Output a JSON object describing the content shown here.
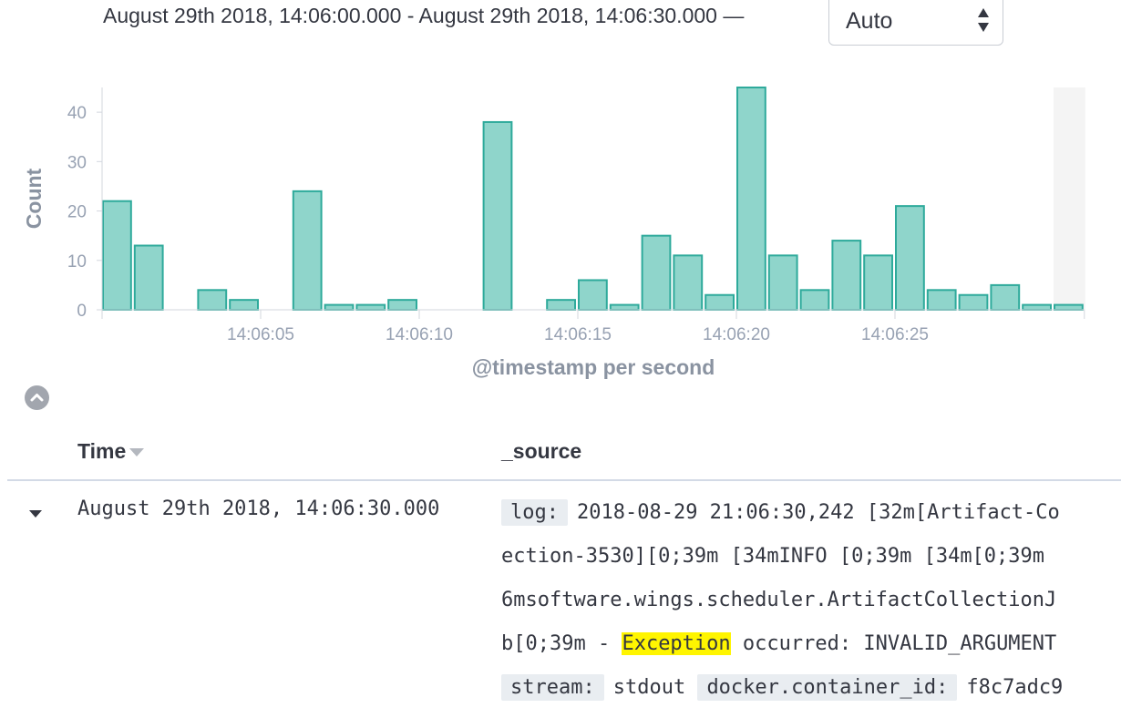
{
  "header": {
    "time_range": "August 29th 2018, 14:06:00.000 - August 29th 2018, 14:06:30.000 —",
    "interval_select": {
      "value": "Auto",
      "options": [
        "Auto"
      ]
    }
  },
  "colors": {
    "bar_fill": "#8fd5cb",
    "bar_stroke": "#2eaa9b",
    "axis_text": "#98a2b3",
    "partial_bucket": "#f4f4f4",
    "highlight": "#fff500"
  },
  "chart_data": {
    "type": "bar",
    "title": "",
    "xlabel": "@timestamp per second",
    "ylabel": "Count",
    "ylim": [
      0,
      45
    ],
    "yticks": [
      0,
      10,
      20,
      30,
      40
    ],
    "xticks": [
      "14:06:05",
      "14:06:10",
      "14:06:15",
      "14:06:20",
      "14:06:25"
    ],
    "categories": [
      "14:06:00",
      "14:06:01",
      "14:06:02",
      "14:06:03",
      "14:06:04",
      "14:06:05",
      "14:06:06",
      "14:06:07",
      "14:06:08",
      "14:06:09",
      "14:06:10",
      "14:06:11",
      "14:06:12",
      "14:06:13",
      "14:06:14",
      "14:06:15",
      "14:06:16",
      "14:06:17",
      "14:06:18",
      "14:06:19",
      "14:06:20",
      "14:06:21",
      "14:06:22",
      "14:06:23",
      "14:06:24",
      "14:06:25",
      "14:06:26",
      "14:06:27",
      "14:06:28",
      "14:06:29",
      "14:06:30"
    ],
    "values": [
      22,
      13,
      0,
      4,
      2,
      0,
      24,
      1,
      1,
      2,
      0,
      0,
      38,
      0,
      2,
      6,
      1,
      15,
      11,
      3,
      45,
      11,
      4,
      14,
      11,
      21,
      4,
      3,
      5,
      1,
      1
    ],
    "partial_bucket_from": "14:06:30",
    "grid": false,
    "legend": "none"
  },
  "table": {
    "columns": [
      {
        "label": "Time",
        "sort": "desc",
        "sort_icon": "caret-down-icon"
      },
      {
        "label": "_source"
      }
    ],
    "rows": [
      {
        "time": "August 29th 2018, 14:06:30.000",
        "expand_icon": "caret-down-icon",
        "source_lines": [
          [
            {
              "key": "log:"
            },
            {
              "text": "2018-08-29 21:06:30,242 [32m[Artifact-Co"
            }
          ],
          [
            {
              "text": "ection-3530][0;39m [34mINFO [0;39m [34m[0;39m"
            }
          ],
          [
            {
              "text": "6msoftware.wings.scheduler.ArtifactCollectionJ"
            }
          ],
          [
            {
              "text": "b[0;39m - "
            },
            {
              "text": "Exception",
              "highlight": true
            },
            {
              "text": " occurred: INVALID_ARGUMENT"
            }
          ],
          [
            {
              "key": "stream:"
            },
            {
              "text": "stdout "
            },
            {
              "key": "docker.container_id:"
            },
            {
              "text": "f8c7adc9"
            }
          ]
        ]
      }
    ]
  },
  "collapse_icon": "chevron-up-icon"
}
